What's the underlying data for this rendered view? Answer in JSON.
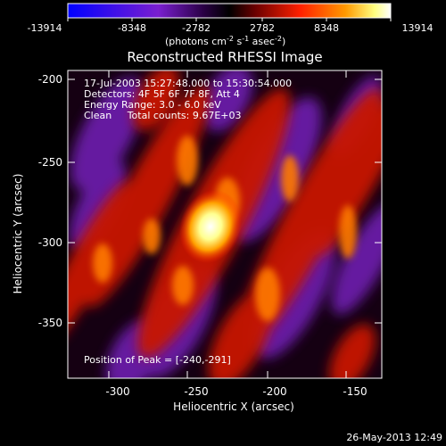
{
  "colorbar": {
    "stops": [
      "#0000ff",
      "#7a1fd0",
      "#300055",
      "#000000",
      "#7a0000",
      "#ff2000",
      "#ff9900",
      "#ffff80",
      "#ffffff"
    ],
    "ticks": [
      "-13914",
      "-8348",
      "-2782",
      "2782",
      "8348",
      "13914"
    ],
    "unit_main": "(photons cm",
    "unit_exp1": "-2",
    "unit_mid": " s",
    "unit_exp2": "-1",
    "unit_mid2": " asec",
    "unit_exp3": "-2",
    "unit_close": ")"
  },
  "title": "Reconstructed RHESSI Image",
  "annotations": {
    "time_range": "17-Jul-2003 15:27:48.000 to 15:30:54.000",
    "detectors": "Detectors: 4F 5F 6F 7F 8F, Att 4",
    "energy": "Energy Range: 3.0 - 6.0 keV",
    "clean": "Clean     Total counts: 9.67E+03",
    "peak": "Position of Peak = [-240,-291]"
  },
  "axes": {
    "xlabel": "Heliocentric X (arcsec)",
    "ylabel": "Heliocentric Y (arcsec)",
    "xticks": [
      "-300",
      "-250",
      "-200",
      "-150"
    ],
    "yticks": [
      "-200",
      "-250",
      "-300",
      "-350"
    ]
  },
  "footer": {
    "date": "26-May-2013 12:49"
  }
}
